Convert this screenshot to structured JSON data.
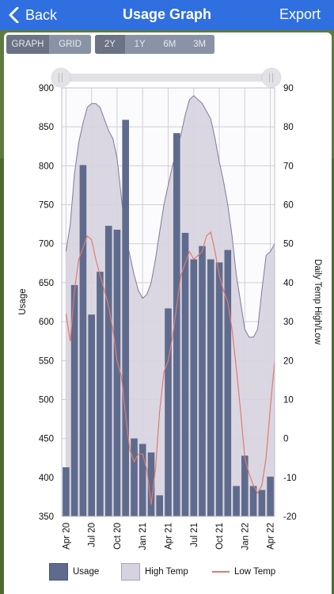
{
  "header": {
    "back_label": "Back",
    "title": "Usage Graph",
    "export_label": "Export"
  },
  "view_toggle": {
    "options": [
      "GRAPH",
      "GRID"
    ],
    "selected": "GRAPH"
  },
  "range_toggle": {
    "options": [
      "2Y",
      "1Y",
      "6M",
      "3M"
    ],
    "selected": "2Y"
  },
  "range_slider": {
    "start_fraction": 0.0,
    "end_fraction": 1.0
  },
  "colors": {
    "header_bg": "#2f6fe0",
    "usage_bar": "#5f6b8d",
    "high_temp_fill": "#d6d3df",
    "high_temp_line": "#7f7a9c",
    "low_temp_line": "#e27a6e"
  },
  "chart_data": {
    "type": "bar",
    "x_ticks": [
      "Apr 20",
      "Jul 20",
      "Oct 20",
      "Jan 21",
      "Apr 21",
      "Jul 21",
      "Oct 21",
      "Jan 22",
      "Apr 22"
    ],
    "ylabel": "Usage",
    "y2label": "Daily Temp High/Low",
    "ylim": [
      350,
      900
    ],
    "y_ticks": [
      350,
      400,
      450,
      500,
      550,
      600,
      650,
      700,
      750,
      800,
      850,
      900
    ],
    "y2lim": [
      -20,
      90
    ],
    "y2_ticks": [
      -20,
      -10,
      0,
      10,
      20,
      30,
      40,
      50,
      60,
      70,
      80,
      90
    ],
    "grid": true,
    "legend_position": "bottom",
    "series": [
      {
        "name": "Usage",
        "type": "bar",
        "values": [
          413,
          647,
          801,
          609,
          664,
          723,
          718,
          859,
          450,
          443,
          432,
          377,
          617,
          842,
          714,
          680,
          697,
          680,
          676,
          692,
          389,
          428,
          389,
          384,
          401
        ]
      },
      {
        "name": "High Temp",
        "type": "area",
        "points": [
          {
            "x": 0.0,
            "y": 48
          },
          {
            "x": 0.5,
            "y": 55
          },
          {
            "x": 1.0,
            "y": 68
          },
          {
            "x": 1.5,
            "y": 76
          },
          {
            "x": 2.0,
            "y": 81
          },
          {
            "x": 2.5,
            "y": 85
          },
          {
            "x": 3.0,
            "y": 86
          },
          {
            "x": 3.5,
            "y": 86
          },
          {
            "x": 4.0,
            "y": 85
          },
          {
            "x": 4.5,
            "y": 82
          },
          {
            "x": 5.0,
            "y": 79
          },
          {
            "x": 5.5,
            "y": 77
          },
          {
            "x": 6.0,
            "y": 72
          },
          {
            "x": 6.5,
            "y": 62
          },
          {
            "x": 7.0,
            "y": 52
          },
          {
            "x": 7.5,
            "y": 47
          },
          {
            "x": 8.0,
            "y": 42
          },
          {
            "x": 8.5,
            "y": 38
          },
          {
            "x": 9.0,
            "y": 36
          },
          {
            "x": 9.5,
            "y": 37
          },
          {
            "x": 10.0,
            "y": 40
          },
          {
            "x": 10.5,
            "y": 46
          },
          {
            "x": 11.0,
            "y": 53
          },
          {
            "x": 11.5,
            "y": 60
          },
          {
            "x": 12.0,
            "y": 65
          },
          {
            "x": 12.5,
            "y": 70
          },
          {
            "x": 13.0,
            "y": 74
          },
          {
            "x": 13.5,
            "y": 78
          },
          {
            "x": 14.0,
            "y": 83
          },
          {
            "x": 14.5,
            "y": 87
          },
          {
            "x": 15.0,
            "y": 88
          },
          {
            "x": 15.5,
            "y": 87
          },
          {
            "x": 16.0,
            "y": 86
          },
          {
            "x": 16.5,
            "y": 84
          },
          {
            "x": 17.0,
            "y": 82
          },
          {
            "x": 17.5,
            "y": 77
          },
          {
            "x": 18.0,
            "y": 71
          },
          {
            "x": 18.5,
            "y": 66
          },
          {
            "x": 19.0,
            "y": 60
          },
          {
            "x": 19.5,
            "y": 52
          },
          {
            "x": 20.0,
            "y": 42
          },
          {
            "x": 20.5,
            "y": 35
          },
          {
            "x": 21.0,
            "y": 28
          },
          {
            "x": 21.5,
            "y": 26
          },
          {
            "x": 22.0,
            "y": 26
          },
          {
            "x": 22.5,
            "y": 28
          },
          {
            "x": 23.0,
            "y": 38
          },
          {
            "x": 23.5,
            "y": 47
          },
          {
            "x": 24.0,
            "y": 48
          },
          {
            "x": 24.5,
            "y": 50
          }
        ]
      },
      {
        "name": "Low Temp",
        "type": "line",
        "points": [
          {
            "x": 0.0,
            "y": 32
          },
          {
            "x": 0.5,
            "y": 25
          },
          {
            "x": 1.0,
            "y": 38
          },
          {
            "x": 1.5,
            "y": 46
          },
          {
            "x": 2.0,
            "y": 49
          },
          {
            "x": 2.5,
            "y": 52
          },
          {
            "x": 3.0,
            "y": 51
          },
          {
            "x": 3.5,
            "y": 46
          },
          {
            "x": 4.0,
            "y": 42
          },
          {
            "x": 4.5,
            "y": 38
          },
          {
            "x": 5.0,
            "y": 34
          },
          {
            "x": 5.5,
            "y": 28
          },
          {
            "x": 6.0,
            "y": 20
          },
          {
            "x": 6.5,
            "y": 16
          },
          {
            "x": 7.0,
            "y": 6
          },
          {
            "x": 7.5,
            "y": -3
          },
          {
            "x": 8.0,
            "y": -6
          },
          {
            "x": 8.5,
            "y": -4
          },
          {
            "x": 9.0,
            "y": -4
          },
          {
            "x": 9.5,
            "y": -8
          },
          {
            "x": 10.0,
            "y": -17
          },
          {
            "x": 10.5,
            "y": -8
          },
          {
            "x": 11.0,
            "y": 7
          },
          {
            "x": 11.5,
            "y": 17
          },
          {
            "x": 12.0,
            "y": 20
          },
          {
            "x": 12.5,
            "y": 26
          },
          {
            "x": 13.0,
            "y": 34
          },
          {
            "x": 13.5,
            "y": 42
          },
          {
            "x": 14.0,
            "y": 45
          },
          {
            "x": 14.5,
            "y": 48
          },
          {
            "x": 15.0,
            "y": 46
          },
          {
            "x": 15.5,
            "y": 47
          },
          {
            "x": 16.0,
            "y": 48
          },
          {
            "x": 16.5,
            "y": 52
          },
          {
            "x": 17.0,
            "y": 53
          },
          {
            "x": 17.5,
            "y": 48
          },
          {
            "x": 18.0,
            "y": 42
          },
          {
            "x": 18.5,
            "y": 38
          },
          {
            "x": 19.0,
            "y": 35
          },
          {
            "x": 19.5,
            "y": 28
          },
          {
            "x": 20.0,
            "y": 18
          },
          {
            "x": 20.5,
            "y": 7
          },
          {
            "x": 21.0,
            "y": -5
          },
          {
            "x": 21.5,
            "y": -9
          },
          {
            "x": 22.0,
            "y": -12
          },
          {
            "x": 22.5,
            "y": -14
          },
          {
            "x": 23.0,
            "y": -12
          },
          {
            "x": 23.5,
            "y": -5
          },
          {
            "x": 24.0,
            "y": 8
          },
          {
            "x": 24.5,
            "y": 20
          }
        ]
      }
    ]
  }
}
